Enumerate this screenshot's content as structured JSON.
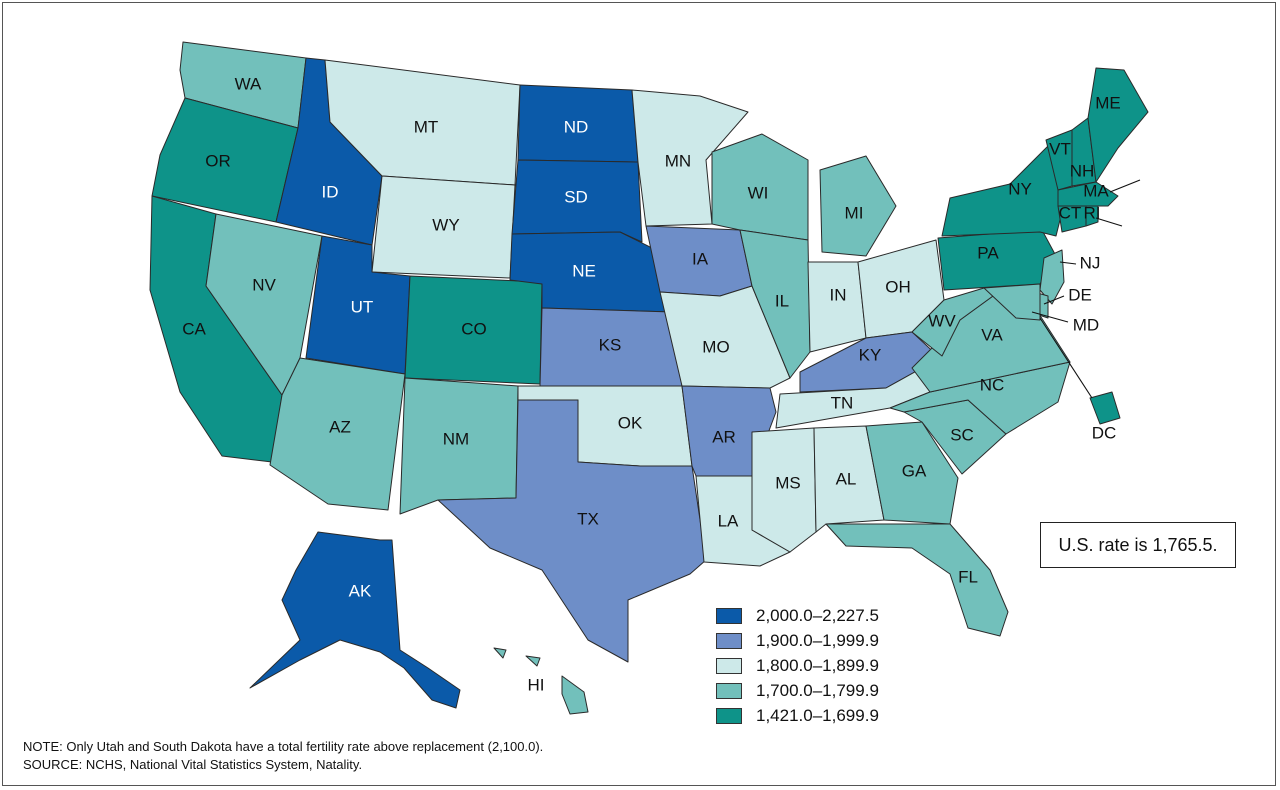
{
  "colors": {
    "c2000": "#0b5aa9",
    "c1900": "#6e8ec8",
    "c1800": "#cde9e9",
    "c1700": "#72c0bb",
    "c1421": "#0e9389"
  },
  "legend": [
    {
      "label": "2,000.0–2,227.5",
      "color": "#0b5aa9"
    },
    {
      "label": "1,900.0–1,999.9",
      "color": "#6e8ec8"
    },
    {
      "label": "1,800.0–1,899.9",
      "color": "#cde9e9"
    },
    {
      "label": "1,700.0–1,799.9",
      "color": "#72c0bb"
    },
    {
      "label": "1,421.0–1,699.9",
      "color": "#0e9389"
    }
  ],
  "rate_box": "U.S. rate is 1,765.5.",
  "note": "NOTE: Only Utah and South Dakota have a total fertility rate above replacement (2,100.0).",
  "source": "SOURCE: NCHS, National Vital Statistics System, Natality.",
  "states": [
    {
      "abbr": "WA",
      "range": "1,700.0–1,799.9"
    },
    {
      "abbr": "OR",
      "range": "1,421.0–1,699.9"
    },
    {
      "abbr": "CA",
      "range": "1,421.0–1,699.9"
    },
    {
      "abbr": "ID",
      "range": "2,000.0–2,227.5"
    },
    {
      "abbr": "NV",
      "range": "1,700.0–1,799.9"
    },
    {
      "abbr": "MT",
      "range": "1,800.0–1,899.9"
    },
    {
      "abbr": "WY",
      "range": "1,800.0–1,899.9"
    },
    {
      "abbr": "UT",
      "range": "2,000.0–2,227.5"
    },
    {
      "abbr": "AZ",
      "range": "1,700.0–1,799.9"
    },
    {
      "abbr": "CO",
      "range": "1,421.0–1,699.9"
    },
    {
      "abbr": "NM",
      "range": "1,700.0–1,799.9"
    },
    {
      "abbr": "ND",
      "range": "2,000.0–2,227.5"
    },
    {
      "abbr": "SD",
      "range": "2,000.0–2,227.5"
    },
    {
      "abbr": "NE",
      "range": "2,000.0–2,227.5"
    },
    {
      "abbr": "KS",
      "range": "1,900.0–1,999.9"
    },
    {
      "abbr": "OK",
      "range": "1,800.0–1,899.9"
    },
    {
      "abbr": "TX",
      "range": "1,900.0–1,999.9"
    },
    {
      "abbr": "MN",
      "range": "1,800.0–1,899.9"
    },
    {
      "abbr": "IA",
      "range": "1,900.0–1,999.9"
    },
    {
      "abbr": "MO",
      "range": "1,800.0–1,899.9"
    },
    {
      "abbr": "AR",
      "range": "1,900.0–1,999.9"
    },
    {
      "abbr": "LA",
      "range": "1,800.0–1,899.9"
    },
    {
      "abbr": "WI",
      "range": "1,700.0–1,799.9"
    },
    {
      "abbr": "IL",
      "range": "1,700.0–1,799.9"
    },
    {
      "abbr": "MI",
      "range": "1,700.0–1,799.9"
    },
    {
      "abbr": "IN",
      "range": "1,800.0–1,899.9"
    },
    {
      "abbr": "OH",
      "range": "1,800.0–1,899.9"
    },
    {
      "abbr": "KY",
      "range": "1,900.0–1,999.9"
    },
    {
      "abbr": "TN",
      "range": "1,800.0–1,899.9"
    },
    {
      "abbr": "MS",
      "range": "1,800.0–1,899.9"
    },
    {
      "abbr": "AL",
      "range": "1,800.0–1,899.9"
    },
    {
      "abbr": "GA",
      "range": "1,700.0–1,799.9"
    },
    {
      "abbr": "FL",
      "range": "1,700.0–1,799.9"
    },
    {
      "abbr": "SC",
      "range": "1,700.0–1,799.9"
    },
    {
      "abbr": "NC",
      "range": "1,700.0–1,799.9"
    },
    {
      "abbr": "VA",
      "range": "1,700.0–1,799.9"
    },
    {
      "abbr": "WV",
      "range": "1,700.0–1,799.9"
    },
    {
      "abbr": "PA",
      "range": "1,421.0–1,699.9"
    },
    {
      "abbr": "NY",
      "range": "1,421.0–1,699.9"
    },
    {
      "abbr": "VT",
      "range": "1,421.0–1,699.9"
    },
    {
      "abbr": "NH",
      "range": "1,421.0–1,699.9"
    },
    {
      "abbr": "ME",
      "range": "1,421.0–1,699.9"
    },
    {
      "abbr": "MA",
      "range": "1,421.0–1,699.9"
    },
    {
      "abbr": "CT",
      "range": "1,421.0–1,699.9"
    },
    {
      "abbr": "RI",
      "range": "1,421.0–1,699.9"
    },
    {
      "abbr": "NJ",
      "range": "1,700.0–1,799.9"
    },
    {
      "abbr": "DE",
      "range": "1,700.0–1,799.9"
    },
    {
      "abbr": "MD",
      "range": "1,700.0–1,799.9"
    },
    {
      "abbr": "DC",
      "range": "1,421.0–1,699.9"
    },
    {
      "abbr": "AK",
      "range": "2,000.0–2,227.5"
    },
    {
      "abbr": "HI",
      "range": "1,700.0–1,799.9"
    }
  ]
}
